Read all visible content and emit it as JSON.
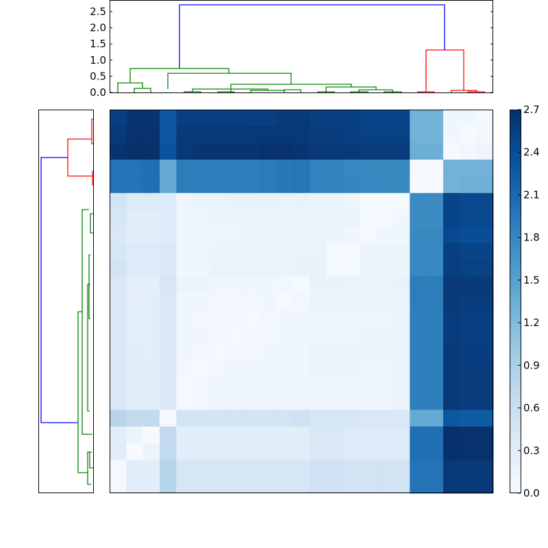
{
  "chart_data": {
    "type": "heatmap",
    "title": "",
    "description": "Clustered distance-matrix heatmap with row and column dendrograms and a colorbar (Blues colormap)",
    "n_leaves": 23,
    "colormap": "Blues",
    "colorbar": {
      "range": [
        0.0,
        2.7
      ],
      "ticks": [
        "0.0",
        "0.3",
        "0.6",
        "0.9",
        "1.2",
        "1.5",
        "1.8",
        "2.1",
        "2.4",
        "2.7"
      ]
    },
    "top_dendrogram": {
      "ylim": [
        0.0,
        2.8
      ],
      "yticks": [
        "0.0",
        "0.5",
        "1.0",
        "1.5",
        "2.0",
        "2.5"
      ],
      "cluster_colors": {
        "root": "#0000ff",
        "cluster_a": "#008000",
        "cluster_b": "#ff0000"
      },
      "root_height": 2.72
    },
    "left_dendrogram": {
      "cluster_colors": {
        "root": "#0000ff",
        "cluster_a": "#ff0000",
        "cluster_b": "#008000"
      }
    },
    "matrix_rows": [
      [
        2.55,
        2.65,
        2.65,
        2.3,
        2.55,
        2.55,
        2.55,
        2.55,
        2.55,
        2.55,
        2.6,
        2.6,
        2.55,
        2.55,
        2.55,
        2.5,
        2.5,
        2.5,
        1.3,
        1.3,
        0.1,
        0.1,
        0.05
      ],
      [
        2.6,
        2.68,
        2.68,
        2.3,
        2.6,
        2.6,
        2.6,
        2.6,
        2.62,
        2.62,
        2.62,
        2.62,
        2.58,
        2.58,
        2.55,
        2.52,
        2.52,
        2.52,
        1.3,
        1.3,
        0.1,
        0.02,
        0.08
      ],
      [
        2.65,
        2.7,
        2.7,
        2.35,
        2.62,
        2.65,
        2.65,
        2.65,
        2.65,
        2.68,
        2.68,
        2.65,
        2.62,
        2.62,
        2.6,
        2.58,
        2.58,
        2.58,
        1.35,
        1.35,
        0.02,
        0.08,
        0.12
      ],
      [
        2.0,
        2.0,
        2.05,
        1.4,
        1.9,
        1.9,
        1.9,
        1.9,
        1.9,
        1.92,
        1.95,
        1.98,
        1.85,
        1.85,
        1.8,
        1.78,
        1.78,
        1.78,
        0.05,
        0.02,
        1.3,
        1.3,
        1.3
      ],
      [
        2.0,
        2.0,
        2.05,
        1.4,
        1.9,
        1.9,
        1.9,
        1.9,
        1.9,
        1.92,
        1.95,
        1.98,
        1.85,
        1.85,
        1.82,
        1.8,
        1.78,
        1.78,
        0.02,
        0.05,
        1.3,
        1.32,
        1.32
      ],
      [
        0.5,
        0.35,
        0.35,
        0.35,
        0.1,
        0.15,
        0.15,
        0.2,
        0.2,
        0.2,
        0.18,
        0.2,
        0.15,
        0.15,
        0.12,
        0.05,
        0.05,
        0.05,
        1.75,
        1.75,
        2.5,
        2.45,
        2.45
      ],
      [
        0.45,
        0.3,
        0.3,
        0.35,
        0.1,
        0.12,
        0.15,
        0.15,
        0.15,
        0.15,
        0.15,
        0.15,
        0.18,
        0.18,
        0.15,
        0.05,
        0.05,
        0.1,
        1.75,
        1.75,
        2.5,
        2.45,
        2.45
      ],
      [
        0.4,
        0.3,
        0.3,
        0.35,
        0.1,
        0.1,
        0.12,
        0.12,
        0.15,
        0.15,
        0.15,
        0.15,
        0.15,
        0.15,
        0.1,
        0.05,
        0.1,
        0.1,
        1.78,
        1.78,
        2.45,
        2.4,
        2.4
      ],
      [
        0.45,
        0.35,
        0.35,
        0.4,
        0.1,
        0.12,
        0.15,
        0.15,
        0.15,
        0.15,
        0.15,
        0.18,
        0.18,
        0.05,
        0.05,
        0.15,
        0.15,
        0.15,
        1.8,
        1.8,
        2.55,
        2.5,
        2.5
      ],
      [
        0.5,
        0.35,
        0.35,
        0.4,
        0.1,
        0.12,
        0.18,
        0.18,
        0.18,
        0.18,
        0.18,
        0.2,
        0.2,
        0.05,
        0.05,
        0.15,
        0.15,
        0.15,
        1.8,
        1.8,
        2.55,
        2.52,
        2.52
      ],
      [
        0.4,
        0.25,
        0.25,
        0.45,
        0.15,
        0.15,
        0.1,
        0.1,
        0.1,
        0.1,
        0.08,
        0.05,
        0.2,
        0.2,
        0.18,
        0.18,
        0.18,
        0.2,
        1.9,
        1.9,
        2.62,
        2.6,
        2.6
      ],
      [
        0.4,
        0.25,
        0.28,
        0.4,
        0.1,
        0.1,
        0.08,
        0.08,
        0.08,
        0.1,
        0.05,
        0.08,
        0.15,
        0.15,
        0.15,
        0.15,
        0.15,
        0.15,
        1.9,
        1.9,
        2.6,
        2.58,
        2.58
      ],
      [
        0.4,
        0.28,
        0.28,
        0.4,
        0.1,
        0.08,
        0.08,
        0.06,
        0.05,
        0.08,
        0.1,
        0.1,
        0.12,
        0.12,
        0.12,
        0.12,
        0.12,
        0.15,
        1.88,
        1.88,
        2.58,
        2.55,
        2.55
      ],
      [
        0.4,
        0.28,
        0.28,
        0.4,
        0.12,
        0.1,
        0.08,
        0.05,
        0.06,
        0.08,
        0.1,
        0.1,
        0.12,
        0.12,
        0.12,
        0.15,
        0.15,
        0.15,
        1.88,
        1.88,
        2.58,
        2.55,
        2.55
      ],
      [
        0.4,
        0.3,
        0.28,
        0.4,
        0.1,
        0.08,
        0.05,
        0.08,
        0.08,
        0.1,
        0.1,
        0.1,
        0.15,
        0.15,
        0.15,
        0.15,
        0.15,
        0.15,
        1.88,
        1.88,
        2.6,
        2.56,
        2.56
      ],
      [
        0.4,
        0.3,
        0.3,
        0.4,
        0.08,
        0.05,
        0.08,
        0.1,
        0.1,
        0.1,
        0.1,
        0.1,
        0.15,
        0.15,
        0.15,
        0.12,
        0.12,
        0.15,
        1.88,
        1.88,
        2.6,
        2.58,
        2.58
      ],
      [
        0.4,
        0.3,
        0.3,
        0.4,
        0.05,
        0.08,
        0.1,
        0.1,
        0.1,
        0.1,
        0.1,
        0.1,
        0.12,
        0.12,
        0.12,
        0.12,
        0.12,
        0.15,
        1.88,
        1.88,
        2.6,
        2.58,
        2.58
      ],
      [
        0.4,
        0.3,
        0.3,
        0.4,
        0.05,
        0.08,
        0.1,
        0.1,
        0.1,
        0.1,
        0.1,
        0.1,
        0.12,
        0.12,
        0.12,
        0.12,
        0.12,
        0.15,
        1.88,
        1.88,
        2.6,
        2.58,
        2.58
      ],
      [
        0.8,
        0.7,
        0.7,
        0.05,
        0.5,
        0.5,
        0.5,
        0.5,
        0.5,
        0.5,
        0.5,
        0.55,
        0.45,
        0.45,
        0.45,
        0.4,
        0.4,
        0.4,
        1.4,
        1.4,
        2.3,
        2.25,
        2.25
      ],
      [
        0.3,
        0.15,
        0.02,
        0.7,
        0.3,
        0.3,
        0.3,
        0.3,
        0.3,
        0.3,
        0.3,
        0.3,
        0.4,
        0.4,
        0.35,
        0.35,
        0.35,
        0.35,
        2.05,
        2.05,
        2.72,
        2.68,
        2.68
      ],
      [
        0.3,
        0.02,
        0.15,
        0.7,
        0.3,
        0.3,
        0.3,
        0.3,
        0.3,
        0.3,
        0.3,
        0.3,
        0.4,
        0.4,
        0.35,
        0.35,
        0.35,
        0.35,
        2.05,
        2.05,
        2.72,
        2.68,
        2.68
      ],
      [
        0.05,
        0.3,
        0.3,
        0.8,
        0.45,
        0.45,
        0.45,
        0.45,
        0.45,
        0.45,
        0.45,
        0.45,
        0.55,
        0.55,
        0.5,
        0.5,
        0.5,
        0.5,
        2.0,
        2.0,
        2.62,
        2.6,
        2.6
      ],
      [
        0.05,
        0.3,
        0.3,
        0.8,
        0.45,
        0.45,
        0.45,
        0.45,
        0.45,
        0.45,
        0.45,
        0.45,
        0.55,
        0.55,
        0.5,
        0.5,
        0.5,
        0.5,
        2.0,
        2.0,
        2.62,
        2.6,
        2.6
      ]
    ]
  },
  "axes": {
    "top_yticks": [
      "0.0",
      "0.5",
      "1.0",
      "1.5",
      "2.0",
      "2.5"
    ],
    "colorbar_ticks": [
      "0.0",
      "0.3",
      "0.6",
      "0.9",
      "1.2",
      "1.5",
      "1.8",
      "2.1",
      "2.4",
      "2.7"
    ]
  }
}
